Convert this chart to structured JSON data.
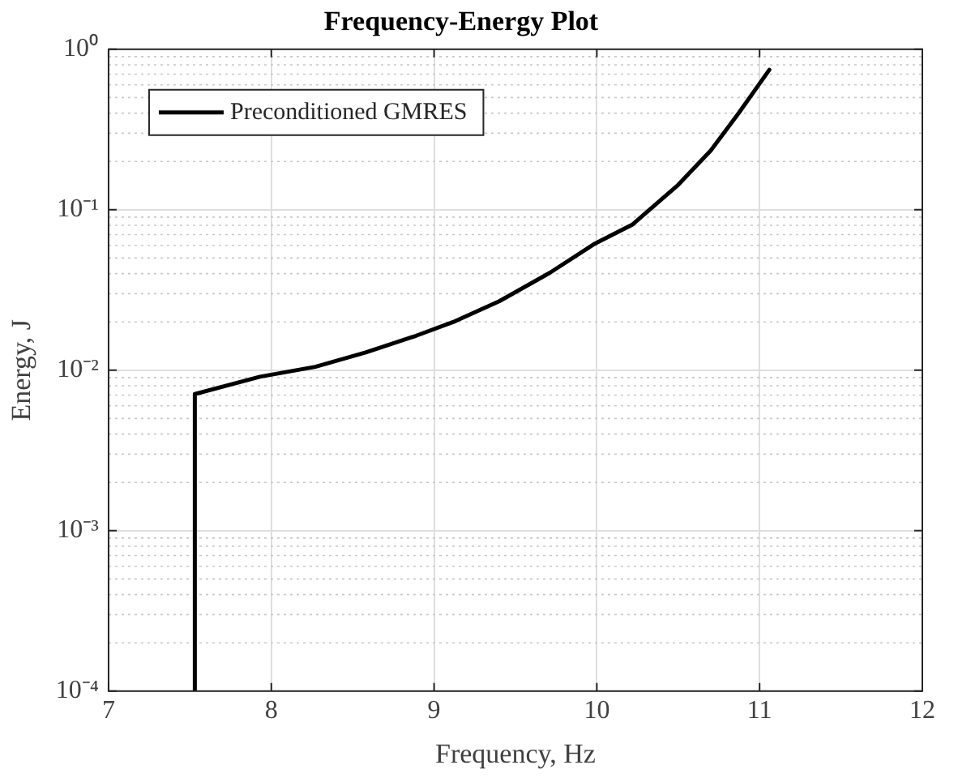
{
  "chart_data": {
    "type": "line",
    "title": "Frequency-Energy Plot",
    "xlabel": "Frequency, Hz",
    "ylabel": "Energy, J",
    "log": "y",
    "grid": true,
    "legend": "top left",
    "marker": "none",
    "line_style": "solid",
    "xlim": [
      7,
      12
    ],
    "xticks": [
      7,
      8,
      9,
      10,
      11,
      12
    ],
    "ylim": [
      0.0001,
      1
    ],
    "yticks": [
      {
        "value": 0.0001,
        "label": "10⁻⁴"
      },
      {
        "value": 0.001,
        "label": "10⁻³"
      },
      {
        "value": 0.01,
        "label": "10⁻²"
      },
      {
        "value": 0.1,
        "label": "10⁻¹"
      },
      {
        "value": 1,
        "label": "10⁰"
      }
    ],
    "series": [
      {
        "name": "Preconditioned GMRES",
        "color": "#000000",
        "x": [
          7.53,
          7.53,
          7.93,
          8.27,
          8.58,
          8.89,
          9.13,
          9.4,
          9.71,
          9.98,
          10.22,
          10.5,
          10.7,
          10.87,
          11.06
        ],
        "values": [
          0.0001,
          0.0071,
          0.0091,
          0.0105,
          0.0129,
          0.0164,
          0.0202,
          0.0269,
          0.0404,
          0.0608,
          0.081,
          0.143,
          0.234,
          0.398,
          0.745
        ]
      }
    ]
  }
}
